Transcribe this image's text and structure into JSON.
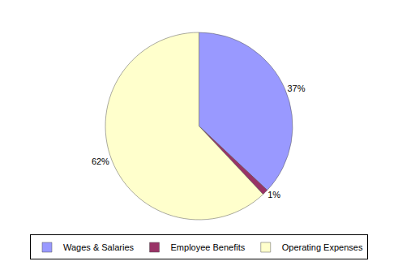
{
  "chart_data": {
    "type": "pie",
    "categories": [
      "Wages & Salaries",
      "Employee Benefits",
      "Operating Expenses"
    ],
    "values": [
      37,
      1,
      62
    ],
    "value_labels": [
      "37%",
      "1%",
      "62%"
    ],
    "colors": [
      "#9999ff",
      "#993366",
      "#ffffcc"
    ],
    "data_labels": true,
    "legend": "bottom"
  }
}
